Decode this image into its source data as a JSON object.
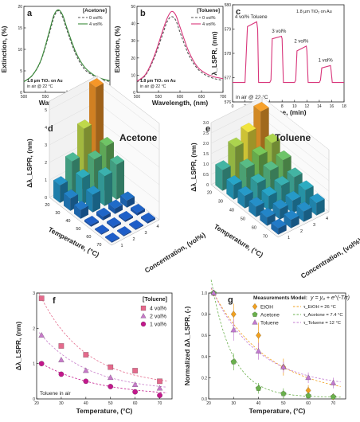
{
  "colors": {
    "axis": "#222222",
    "grid": "#dddddd",
    "green": "#3a8a3a",
    "gray_dash": "#555555",
    "pink": "#d8357a",
    "sq": "#e46a8c",
    "tri": "#c77ac9",
    "circ": "#c2188c",
    "orange": "#f0a020",
    "olive": "#6ab04c",
    "violet": "#c27ad0"
  },
  "chart_data": [
    {
      "panel": "a",
      "type": "line",
      "legend_title": "[Acetone]",
      "legend_position": "top-right",
      "xlabel": "Wavelength, (nm)",
      "ylabel": "Extinction, (%)",
      "xlim": [
        500,
        700
      ],
      "ylim": [
        0,
        20
      ],
      "xticks": [
        "500",
        "550",
        "600",
        "650",
        "700"
      ],
      "yticks": [
        "0",
        "5",
        "10",
        "15",
        "20"
      ],
      "annotation": [
        "1.8 µm TiO₂ on Au",
        "in air @ 22 °C"
      ],
      "series": [
        {
          "name": "0 vol%",
          "style": "dash",
          "x": [
            500,
            520,
            540,
            560,
            570,
            580,
            590,
            600,
            620,
            640,
            660,
            680,
            700
          ],
          "y": [
            2.5,
            4,
            7.5,
            14,
            17.5,
            19,
            17.5,
            14.5,
            9,
            5.5,
            4,
            3,
            2.5
          ]
        },
        {
          "name": "4 vol%",
          "style": "solid",
          "x": [
            500,
            520,
            540,
            560,
            570,
            580,
            590,
            600,
            620,
            640,
            660,
            680,
            700
          ],
          "y": [
            2.5,
            4,
            7.6,
            14.5,
            18,
            19.2,
            18,
            15,
            9.5,
            6,
            4.2,
            3.2,
            2.7
          ]
        }
      ]
    },
    {
      "panel": "b",
      "type": "line",
      "legend_title": "[Toluene]",
      "legend_position": "top-right",
      "xlabel": "Wavelength, (nm)",
      "ylabel": "Extinction, (%)",
      "xlim": [
        500,
        700
      ],
      "ylim": [
        0,
        50
      ],
      "xticks": [
        "500",
        "550",
        "600",
        "650",
        "700"
      ],
      "yticks": [
        "0",
        "10",
        "20",
        "30",
        "40",
        "50"
      ],
      "annotation": [
        "1.8 µm TiO₂ on Au",
        "in air @ 22 °C"
      ],
      "series": [
        {
          "name": "0 vol%",
          "style": "dash",
          "x": [
            500,
            520,
            540,
            560,
            570,
            580,
            590,
            600,
            620,
            640,
            660,
            680,
            700
          ],
          "y": [
            6,
            10,
            20,
            34,
            41,
            44,
            42,
            35,
            22,
            14,
            10,
            8,
            7
          ]
        },
        {
          "name": "4 vol%",
          "style": "solid",
          "x": [
            500,
            520,
            540,
            560,
            570,
            580,
            590,
            600,
            620,
            640,
            660,
            680,
            700
          ],
          "y": [
            6.5,
            10.5,
            21,
            36,
            43,
            47,
            45,
            38,
            24,
            15,
            11,
            9,
            8
          ]
        }
      ]
    },
    {
      "panel": "c",
      "type": "line",
      "xlabel": "Time, (min)",
      "ylabel": "λ_LSPR, (nm)",
      "xlim": [
        0,
        18
      ],
      "ylim": [
        576,
        580
      ],
      "xticks": [
        "0",
        "2",
        "4",
        "6",
        "8",
        "10",
        "12",
        "14",
        "16",
        "18"
      ],
      "yticks": [
        "576",
        "577",
        "578",
        "579",
        "580"
      ],
      "annotation_top": "1.8 µm TiO₂ on Au",
      "annotation_bottom": "in air @ 22 °C",
      "step_labels": [
        "4 vol% Toluene",
        "3 vol%",
        "2 vol%",
        "1 vol%"
      ],
      "series": [
        {
          "name": "",
          "x": [
            0,
            2,
            2.4,
            3.9,
            4.05,
            4.2,
            6,
            6.2,
            6.4,
            7.9,
            8,
            8.2,
            10,
            10.2,
            10.4,
            11.9,
            12,
            12.2,
            14,
            14.2,
            14.4,
            15.8,
            15.9,
            16.1,
            18
          ],
          "y": [
            576.8,
            576.8,
            579.1,
            579.3,
            579.0,
            576.8,
            576.8,
            576.9,
            578.6,
            578.7,
            578.6,
            576.8,
            576.8,
            576.9,
            578.1,
            578.3,
            578.1,
            576.8,
            576.8,
            576.9,
            577.4,
            577.5,
            577.3,
            576.8,
            576.8
          ]
        }
      ]
    },
    {
      "panel": "d",
      "type": "bar3d",
      "title": "Acetone",
      "zlabel": "Δλ_LSPR, (nm)",
      "xlabel": "Temperature, (°C)",
      "ylabel": "Concentration, (vol%)",
      "temps": [
        "20",
        "30",
        "40",
        "50",
        "60",
        "70"
      ],
      "concs": [
        "1",
        "2",
        "3",
        "4"
      ],
      "zticks": [
        "0",
        "1",
        "2",
        "3",
        "4",
        "5"
      ],
      "values": [
        [
          1.0,
          2.0,
          3.5,
          5.5
        ],
        [
          0.7,
          1.5,
          2.2,
          2.6
        ],
        [
          0.5,
          1.0,
          1.7,
          2.0
        ],
        [
          0.1,
          0.2,
          0.3,
          0.4
        ],
        [
          0.05,
          0.1,
          0.1,
          0.15
        ],
        [
          0.05,
          0.05,
          0.05,
          0.1
        ]
      ]
    },
    {
      "panel": "e",
      "type": "bar3d",
      "title": "Toluene",
      "zlabel": "Δλ_LSPR, (nm)",
      "xlabel": "Temperature, (°C)",
      "ylabel": "Concentration, (vol%)",
      "temps": [
        "20",
        "30",
        "40",
        "50",
        "60",
        "70"
      ],
      "concs": [
        "1",
        "2",
        "3",
        "4"
      ],
      "zticks": [
        "0",
        "0.5",
        "1.0",
        "1.5",
        "2.0",
        "2.5",
        "3.0"
      ],
      "values": [
        [
          1.0,
          1.8,
          2.2,
          2.9
        ],
        [
          0.7,
          1.2,
          1.5,
          1.8
        ],
        [
          0.6,
          0.9,
          1.2,
          1.4
        ],
        [
          0.5,
          0.7,
          0.9,
          1.0
        ],
        [
          0.4,
          0.5,
          0.6,
          0.8
        ],
        [
          0.3,
          0.4,
          0.5,
          0.6
        ]
      ]
    },
    {
      "panel": "f",
      "type": "scatter",
      "legend_title": "[Toluene]",
      "legend_position": "top-right",
      "xlabel": "Temperature, (°C)",
      "ylabel": "Δλ_LSPR, (nm)",
      "xlim": [
        20,
        75
      ],
      "ylim": [
        0,
        3
      ],
      "xticks": [
        "20",
        "30",
        "40",
        "50",
        "60",
        "70"
      ],
      "yticks": [
        "0",
        "1",
        "2",
        "3"
      ],
      "annotation": "Toluene in air",
      "series": [
        {
          "name": "4 vol%",
          "marker": "square",
          "x": [
            22,
            30,
            40,
            50,
            60,
            70
          ],
          "y": [
            2.85,
            1.5,
            1.25,
            0.9,
            0.8,
            0.5
          ]
        },
        {
          "name": "2 vol%",
          "marker": "triangle",
          "x": [
            22,
            30,
            40,
            50,
            60,
            70
          ],
          "y": [
            1.8,
            1.1,
            0.8,
            0.6,
            0.4,
            0.3
          ]
        },
        {
          "name": "1 vol%",
          "marker": "circle",
          "x": [
            22,
            30,
            40,
            50,
            60,
            70
          ],
          "y": [
            1.0,
            0.7,
            0.5,
            0.35,
            0.2,
            0.1
          ]
        }
      ]
    },
    {
      "panel": "g",
      "type": "scatter",
      "legend_title": "Measurements",
      "model_title": "Model:",
      "model_equation": "y = y₀ + e^(-T/τ)",
      "model_fits": [
        "τ_EtOH = 26 °C",
        "τ_Acetone = 7.4 °C",
        "τ_Toluene = 12 °C"
      ],
      "xlabel": "Temperature, (°C)",
      "ylabel": "Normalized Δλ_LSPR, (-)",
      "xlim": [
        20,
        75
      ],
      "ylim": [
        0,
        1
      ],
      "xticks": [
        "20",
        "30",
        "40",
        "50",
        "60",
        "70"
      ],
      "yticks": [
        "0.0",
        "0.2",
        "0.4",
        "0.6",
        "0.8",
        "1.0"
      ],
      "series": [
        {
          "name": "EtOH",
          "marker": "diamond",
          "x": [
            22,
            30,
            40,
            50,
            60,
            70
          ],
          "y": [
            1.0,
            0.8,
            0.6,
            0.3,
            0.08,
            0.02
          ],
          "err": [
            0,
            0.1,
            0.12,
            0.08,
            0.05,
            0.02
          ]
        },
        {
          "name": "Acetone",
          "marker": "pentagon",
          "x": [
            22,
            30,
            40,
            50,
            60,
            70
          ],
          "y": [
            1.0,
            0.35,
            0.1,
            0.05,
            0.03,
            0.02
          ],
          "err": [
            0,
            0.08,
            0.05,
            0.05,
            0.03,
            0.02
          ]
        },
        {
          "name": "Toluene",
          "marker": "triangle",
          "x": [
            22,
            30,
            40,
            50,
            60,
            70
          ],
          "y": [
            1.0,
            0.65,
            0.45,
            0.3,
            0.2,
            0.15
          ],
          "err": [
            0,
            0.1,
            0.08,
            0.05,
            0.05,
            0.05
          ]
        }
      ]
    }
  ]
}
